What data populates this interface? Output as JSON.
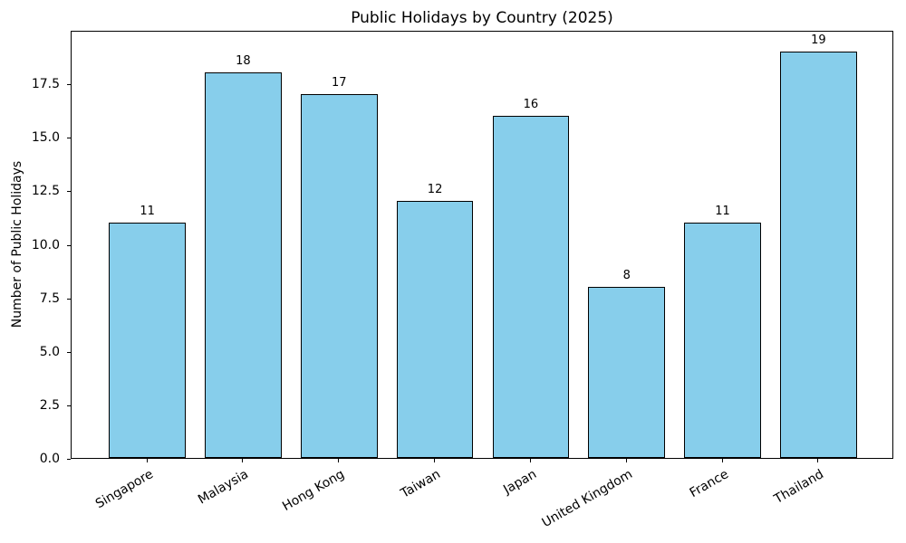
{
  "chart_data": {
    "type": "bar",
    "title": "Public Holidays by Country (2025)",
    "xlabel": "",
    "ylabel": "Number of Public Holidays",
    "categories": [
      "Singapore",
      "Malaysia",
      "Hong Kong",
      "Taiwan",
      "Japan",
      "United Kingdom",
      "France",
      "Thailand"
    ],
    "values": [
      11,
      18,
      17,
      12,
      16,
      8,
      11,
      19
    ],
    "bar_value_labels": [
      "11",
      "18",
      "17",
      "12",
      "16",
      "8",
      "11",
      "19"
    ],
    "yticks": [
      0.0,
      2.5,
      5.0,
      7.5,
      10.0,
      12.5,
      15.0,
      17.5
    ],
    "ytick_labels": [
      "0.0",
      "2.5",
      "5.0",
      "7.5",
      "10.0",
      "12.5",
      "15.0",
      "17.5"
    ],
    "ylim": [
      0,
      20
    ],
    "grid": false,
    "legend_position": "none",
    "x_tick_rotation_deg": 30,
    "bar_color": "#87CEEB",
    "bar_edge_color": "#000000",
    "background_color": "#FFFFFF",
    "text_color": "#000000"
  }
}
